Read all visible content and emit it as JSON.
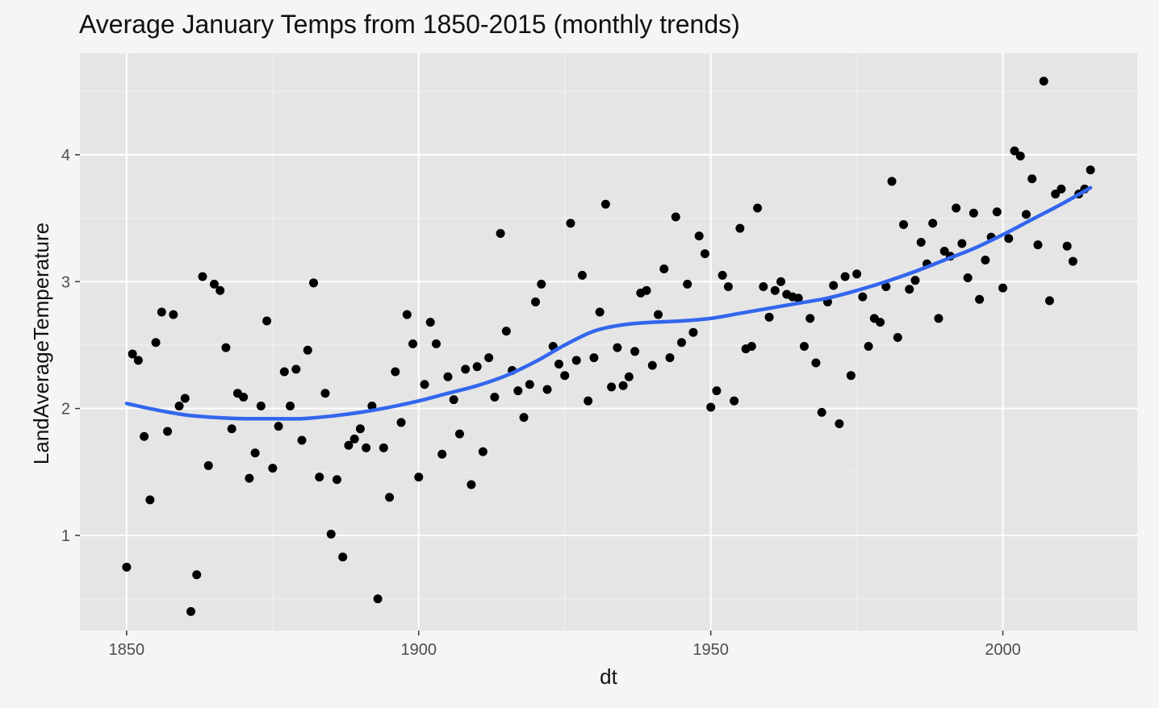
{
  "chart_data": {
    "type": "scatter",
    "title": "Average January Temps from 1850-2015 (monthly trends)",
    "xlabel": "dt",
    "ylabel": "LandAverageTemperature",
    "xlim": [
      1842,
      2023
    ],
    "ylim": [
      0.25,
      4.8
    ],
    "x_ticks": [
      1850,
      1900,
      1950,
      2000
    ],
    "x_tick_labels": [
      "1850",
      "1900",
      "1950",
      "2000"
    ],
    "y_ticks": [
      1,
      2,
      3,
      4
    ],
    "y_tick_labels": [
      "1",
      "2",
      "3",
      "4"
    ],
    "grid": true,
    "background": "#e5e5e5",
    "point_color": "#000000",
    "trend_color": "#3366ee",
    "series": [
      {
        "type": "scatter",
        "x": [
          1850,
          1851,
          1852,
          1853,
          1854,
          1855,
          1856,
          1857,
          1858,
          1859,
          1860,
          1861,
          1862,
          1863,
          1864,
          1865,
          1866,
          1867,
          1868,
          1869,
          1870,
          1871,
          1872,
          1873,
          1874,
          1875,
          1876,
          1877,
          1878,
          1879,
          1880,
          1881,
          1882,
          1883,
          1884,
          1885,
          1886,
          1887,
          1888,
          1889,
          1890,
          1891,
          1892,
          1893,
          1894,
          1895,
          1896,
          1897,
          1898,
          1899,
          1900,
          1901,
          1902,
          1903,
          1904,
          1905,
          1906,
          1907,
          1908,
          1909,
          1910,
          1911,
          1912,
          1913,
          1914,
          1915,
          1916,
          1917,
          1918,
          1919,
          1920,
          1921,
          1922,
          1923,
          1924,
          1925,
          1926,
          1927,
          1928,
          1929,
          1930,
          1931,
          1932,
          1933,
          1934,
          1935,
          1936,
          1937,
          1938,
          1939,
          1940,
          1941,
          1942,
          1943,
          1944,
          1945,
          1946,
          1947,
          1948,
          1949,
          1950,
          1951,
          1952,
          1953,
          1954,
          1955,
          1956,
          1957,
          1958,
          1959,
          1960,
          1961,
          1962,
          1963,
          1964,
          1965,
          1966,
          1967,
          1968,
          1969,
          1970,
          1971,
          1972,
          1973,
          1974,
          1975,
          1976,
          1977,
          1978,
          1979,
          1980,
          1981,
          1982,
          1983,
          1984,
          1985,
          1986,
          1987,
          1988,
          1989,
          1990,
          1991,
          1992,
          1993,
          1994,
          1995,
          1996,
          1997,
          1998,
          1999,
          2000,
          2001,
          2002,
          2003,
          2004,
          2005,
          2006,
          2007,
          2008,
          2009,
          2010,
          2011,
          2012,
          2013,
          2014,
          2015
        ],
        "y": [
          0.75,
          2.43,
          2.38,
          1.78,
          1.28,
          2.52,
          2.76,
          1.82,
          2.74,
          2.02,
          2.08,
          0.4,
          0.69,
          3.04,
          1.55,
          2.98,
          2.93,
          2.48,
          1.84,
          2.12,
          2.09,
          1.45,
          1.65,
          2.02,
          2.69,
          1.53,
          1.86,
          2.29,
          2.02,
          2.31,
          1.75,
          2.46,
          2.99,
          1.46,
          2.12,
          1.01,
          1.44,
          0.83,
          1.71,
          1.76,
          1.84,
          1.69,
          2.02,
          0.5,
          1.69,
          1.3,
          2.29,
          1.89,
          2.74,
          2.51,
          1.46,
          2.19,
          2.68,
          2.51,
          1.64,
          2.25,
          2.07,
          1.8,
          2.31,
          1.4,
          2.33,
          1.66,
          2.4,
          2.09,
          3.38,
          2.61,
          2.3,
          2.14,
          1.93,
          2.19,
          2.84,
          2.98,
          2.15,
          2.49,
          2.35,
          2.26,
          3.46,
          2.38,
          3.05,
          2.06,
          2.4,
          2.76,
          3.61,
          2.17,
          2.48,
          2.18,
          2.25,
          2.45,
          2.91,
          2.93,
          2.34,
          2.74,
          3.1,
          2.4,
          3.51,
          2.52,
          2.98,
          2.6,
          3.36,
          3.22,
          2.01,
          2.14,
          3.05,
          2.96,
          2.06,
          3.42,
          2.47,
          2.49,
          3.58,
          2.96,
          2.72,
          2.93,
          3.0,
          2.9,
          2.88,
          2.87,
          2.49,
          2.71,
          2.36,
          1.97,
          2.84,
          2.97,
          1.88,
          3.04,
          2.26,
          3.06,
          2.88,
          2.49,
          2.71,
          2.68,
          2.96,
          3.79,
          2.56,
          3.45,
          2.94,
          3.01,
          3.31,
          3.14,
          3.46,
          2.71,
          3.24,
          3.2,
          3.58,
          3.3,
          3.03,
          3.54,
          2.86,
          3.17,
          3.35,
          3.55,
          2.95,
          3.34,
          4.03,
          3.99,
          3.53,
          3.81,
          3.29,
          4.58,
          2.85,
          3.69,
          3.73,
          3.28,
          3.16,
          3.69,
          3.73,
          3.88
        ]
      },
      {
        "type": "line",
        "x": [
          1850,
          1855,
          1860,
          1865,
          1870,
          1875,
          1880,
          1885,
          1890,
          1895,
          1900,
          1905,
          1910,
          1915,
          1920,
          1925,
          1930,
          1935,
          1940,
          1945,
          1950,
          1955,
          1960,
          1965,
          1970,
          1975,
          1980,
          1985,
          1990,
          1995,
          2000,
          2005,
          2010,
          2015
        ],
        "y": [
          2.04,
          1.99,
          1.95,
          1.93,
          1.92,
          1.92,
          1.92,
          1.94,
          1.97,
          2.01,
          2.06,
          2.12,
          2.18,
          2.26,
          2.37,
          2.5,
          2.61,
          2.66,
          2.68,
          2.69,
          2.71,
          2.75,
          2.79,
          2.83,
          2.87,
          2.93,
          3.0,
          3.08,
          3.17,
          3.26,
          3.37,
          3.49,
          3.61,
          3.74
        ]
      }
    ]
  }
}
